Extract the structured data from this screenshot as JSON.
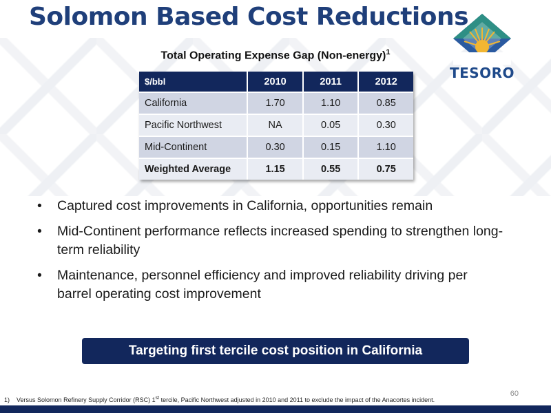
{
  "slide": {
    "title": "Solomon Based Cost Reductions",
    "page_number": "60"
  },
  "logo": {
    "text": "TESORO",
    "colors": {
      "diamond_top": "#2e8f85",
      "diamond_bottom": "#2a5aa0",
      "sun": "#f2b632",
      "text": "#1f4a8a"
    }
  },
  "table": {
    "title": "Total Operating Expense Gap (Non-energy)",
    "title_superscript": "1",
    "headers": [
      "$/bbl",
      "2010",
      "2011",
      "2012"
    ],
    "rows": [
      [
        "California",
        "1.70",
        "1.10",
        "0.85"
      ],
      [
        "Pacific Northwest",
        "NA",
        "0.05",
        "0.30"
      ],
      [
        "Mid-Continent",
        "0.30",
        "0.15",
        "1.10"
      ],
      [
        "Weighted Average",
        "1.15",
        "0.55",
        "0.75"
      ]
    ],
    "colors": {
      "header_bg": "#12275c",
      "row_dark": "#d0d5e3",
      "row_light": "#e9ecf3"
    }
  },
  "bullets": [
    "Captured cost improvements in California, opportunities remain",
    "Mid-Continent performance reflects increased spending to strengthen long-term reliability",
    "Maintenance, personnel efficiency and improved reliability driving per barrel operating cost improvement"
  ],
  "bullet_symbol": "•",
  "banner": {
    "text": "Targeting first tercile cost position in California"
  },
  "footnote": {
    "marker": "1)",
    "text_before": "Versus Solomon Refinery Supply Corridor (RSC) 1",
    "superscript": "st",
    "text_after": " tercile, Pacific Northwest adjusted in 2010 and 2011 to exclude the impact of the Anacortes incident."
  }
}
